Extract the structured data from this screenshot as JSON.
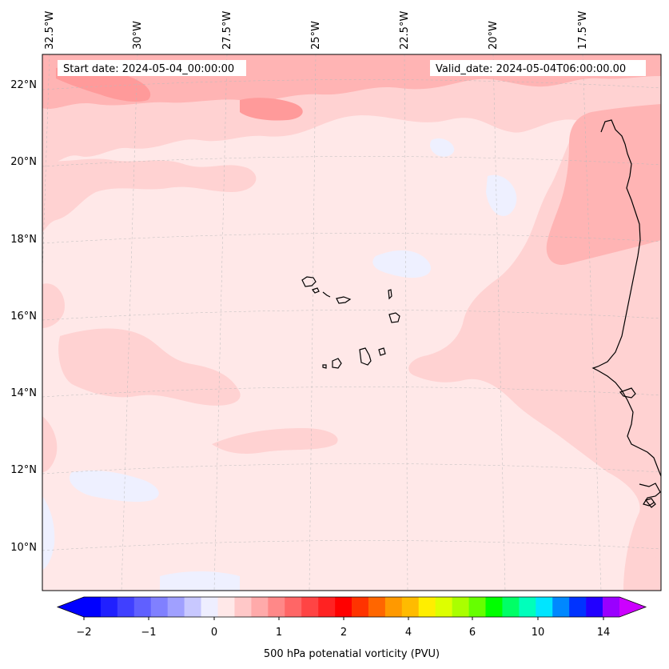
{
  "map": {
    "start_date": "Start date: 2024-05-04_00:00:00",
    "valid_date": "Valid_date: 2024-05-04T06:00:00.00",
    "lon_labels": [
      "32.5°W",
      "30°W",
      "27.5°W",
      "25°W",
      "22.5°W",
      "20°W",
      "17.5°W"
    ],
    "lat_labels": [
      "22°N",
      "20°N",
      "18°N",
      "16°N",
      "14°N",
      "12°N",
      "10°N"
    ],
    "colors": {
      "ocean_base": "#ffe8e8",
      "light_pink": "#ffd2d2",
      "mid_pink": "#ffb4b4",
      "deep_pink": "#ff9a9a",
      "pale_blue": "#eef0ff",
      "coast": "#000000"
    }
  },
  "colorbar": {
    "title": "500 hPa potenatial vorticity (PVU)",
    "ticks": [
      "−2",
      "−1",
      "0",
      "1",
      "2",
      "4",
      "6",
      "10",
      "14"
    ],
    "colors": [
      "#0000ff",
      "#2020ff",
      "#4040ff",
      "#6060ff",
      "#8080ff",
      "#a0a0ff",
      "#c8c8ff",
      "#eeeeff",
      "#ffe8e8",
      "#ffc8c8",
      "#ffaaaa",
      "#ff8888",
      "#ff6666",
      "#ff4444",
      "#ff2222",
      "#ff0000",
      "#ff3300",
      "#ff6600",
      "#ff9900",
      "#ffbb00",
      "#ffee00",
      "#ddff00",
      "#aaff00",
      "#66ff00",
      "#00ff00",
      "#00ff66",
      "#00ffbb",
      "#00e5ff",
      "#0088ff",
      "#0033ff",
      "#2200ff",
      "#9900ff"
    ],
    "extend_low": "#0000ff",
    "extend_high": "#cc00ff"
  }
}
